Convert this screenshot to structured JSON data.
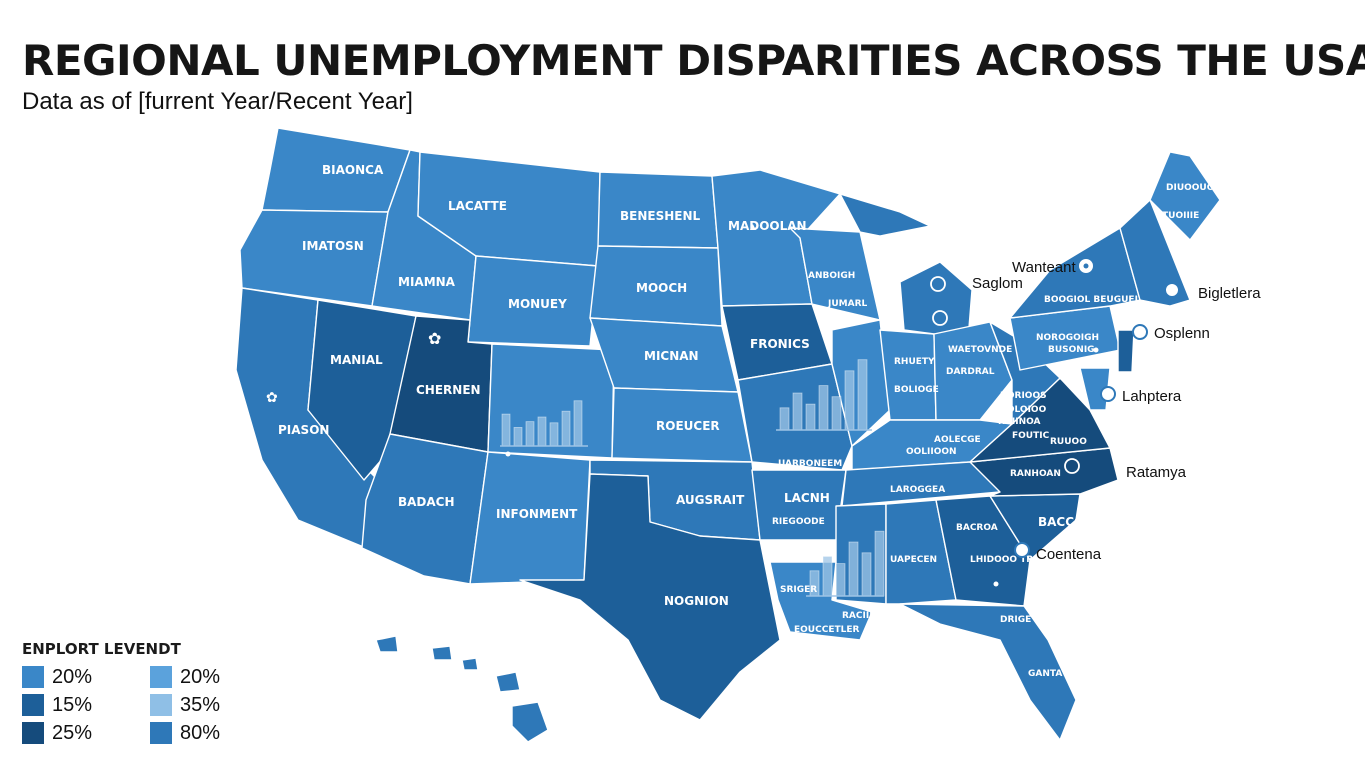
{
  "header": {
    "title": "REGIONAL UNEMPLOYMENT DISPARITIES ACROSS THE USA",
    "subtitle": "Data as of [furrent Year/Recent Year]"
  },
  "colors": {
    "light": "#3a87c8",
    "mid": "#2e78b8",
    "dark": "#1d5f99",
    "darkest": "#154b7c",
    "bar": "#9dc4e6",
    "ocean": "#ffffff"
  },
  "map": {
    "states": [
      {
        "label": "BIAONCA"
      },
      {
        "label": "IMATOSN"
      },
      {
        "label": "LACATTE"
      },
      {
        "label": "MIAMNA"
      },
      {
        "label": "PIASON"
      },
      {
        "label": "MANIAL"
      },
      {
        "label": "CHERNEN"
      },
      {
        "label": "BADACH"
      },
      {
        "label": "INFONMENT"
      },
      {
        "label": "BENESHENL"
      },
      {
        "label": "MOOCH"
      },
      {
        "label": "MONUEY"
      },
      {
        "label": "MICNAN"
      },
      {
        "label": "ROEUCER"
      },
      {
        "label": "AUGSRAIT"
      },
      {
        "label": "NOGNION"
      },
      {
        "label": "MADOOLAN"
      },
      {
        "label": "FRONICS"
      },
      {
        "label": "UARBONEEM"
      },
      {
        "label": "LACNH"
      },
      {
        "label": "RIEGOODE"
      },
      {
        "label": "SRIGER"
      },
      {
        "label": "EOUCCETLER"
      },
      {
        "label": "ANBOIGH"
      },
      {
        "label": "JUMARL"
      },
      {
        "label": "RHUETY"
      },
      {
        "label": "BOLIOGE"
      },
      {
        "label": "WAETOVNDE"
      },
      {
        "label": "DARDRAL"
      },
      {
        "label": "LAROGGEA"
      },
      {
        "label": "AOLECGE"
      },
      {
        "label": "OOLIIOON"
      },
      {
        "label": "RACIIE"
      },
      {
        "label": "UAPECEN"
      },
      {
        "label": "BACROA"
      },
      {
        "label": "BACCODO"
      },
      {
        "label": "LHIDOOO TROTOIMA"
      },
      {
        "label": "RANHOAN"
      },
      {
        "label": "BORIOOS"
      },
      {
        "label": "BOLOIOO"
      },
      {
        "label": "RAIINOA"
      },
      {
        "label": "FOUTIC"
      },
      {
        "label": "RUUOO"
      },
      {
        "label": "NOROGOIGH"
      },
      {
        "label": "BOOGIOL BEUGUEL"
      },
      {
        "label": "BUSONIG"
      },
      {
        "label": "DIUOOUO"
      },
      {
        "label": "TUOIIIE"
      },
      {
        "label": "GANTA"
      },
      {
        "label": "DRIGE"
      }
    ],
    "callouts": [
      {
        "label": "Wanteant"
      },
      {
        "label": "Saglom"
      },
      {
        "label": "Bigletlera"
      },
      {
        "label": "Osplenn"
      },
      {
        "label": "Lahptera"
      },
      {
        "label": "Ratamya"
      },
      {
        "label": "Coentena"
      }
    ]
  },
  "bar_insets": [
    {
      "values": [
        0.55,
        0.32,
        0.42,
        0.5,
        0.4,
        0.6,
        0.78
      ]
    },
    {
      "values": [
        0.3,
        0.5,
        0.35,
        0.6,
        0.45,
        0.8,
        0.95
      ]
    },
    {
      "values": [
        0.35,
        0.55,
        0.45,
        0.75,
        0.6,
        0.9
      ]
    }
  ],
  "legend": {
    "title": "ENPLORT LEVENDT",
    "items": [
      {
        "label": "20%",
        "color": "#3a87c8"
      },
      {
        "label": "20%",
        "color": "#5ba2dc"
      },
      {
        "label": "15%",
        "color": "#1d5f99"
      },
      {
        "label": "35%",
        "color": "#8fbfe6"
      },
      {
        "label": "25%",
        "color": "#154b7c"
      },
      {
        "label": "80%",
        "color": "#2e78b8"
      }
    ]
  }
}
